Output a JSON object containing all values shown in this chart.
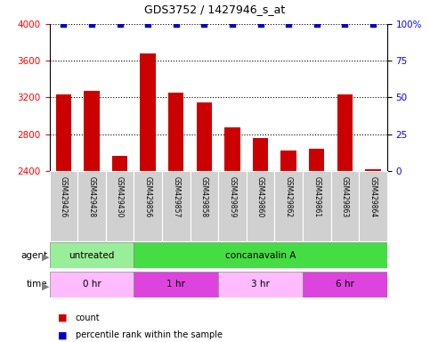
{
  "title": "GDS3752 / 1427946_s_at",
  "samples": [
    "GSM429426",
    "GSM429428",
    "GSM429430",
    "GSM429856",
    "GSM429857",
    "GSM429858",
    "GSM429859",
    "GSM429860",
    "GSM429862",
    "GSM429861",
    "GSM429863",
    "GSM429864"
  ],
  "counts": [
    3230,
    3270,
    2560,
    3680,
    3250,
    3150,
    2870,
    2760,
    2620,
    2640,
    3230,
    2420
  ],
  "bar_color": "#cc0000",
  "dot_color": "#0000cc",
  "ylim_left": [
    2400,
    4000
  ],
  "ylim_right": [
    0,
    100
  ],
  "yticks_left": [
    2400,
    2800,
    3200,
    3600,
    4000
  ],
  "yticks_right": [
    0,
    25,
    50,
    75,
    100
  ],
  "ytick_labels_right": [
    "0",
    "25",
    "50",
    "75",
    "100%"
  ],
  "grid_ticks": [
    2800,
    3200,
    3600,
    4000
  ],
  "agent_groups": [
    {
      "label": "untreated",
      "start": 0,
      "end": 3,
      "color": "#99ee99"
    },
    {
      "label": "concanavalin A",
      "start": 3,
      "end": 12,
      "color": "#44dd44"
    }
  ],
  "time_groups": [
    {
      "label": "0 hr",
      "start": 0,
      "end": 3,
      "color": "#ffbbff"
    },
    {
      "label": "1 hr",
      "start": 3,
      "end": 6,
      "color": "#dd44dd"
    },
    {
      "label": "3 hr",
      "start": 6,
      "end": 9,
      "color": "#ffbbff"
    },
    {
      "label": "6 hr",
      "start": 9,
      "end": 12,
      "color": "#dd44dd"
    }
  ],
  "legend_count_color": "#cc0000",
  "legend_dot_color": "#0000cc",
  "background_color": "#ffffff",
  "bar_width": 0.55
}
